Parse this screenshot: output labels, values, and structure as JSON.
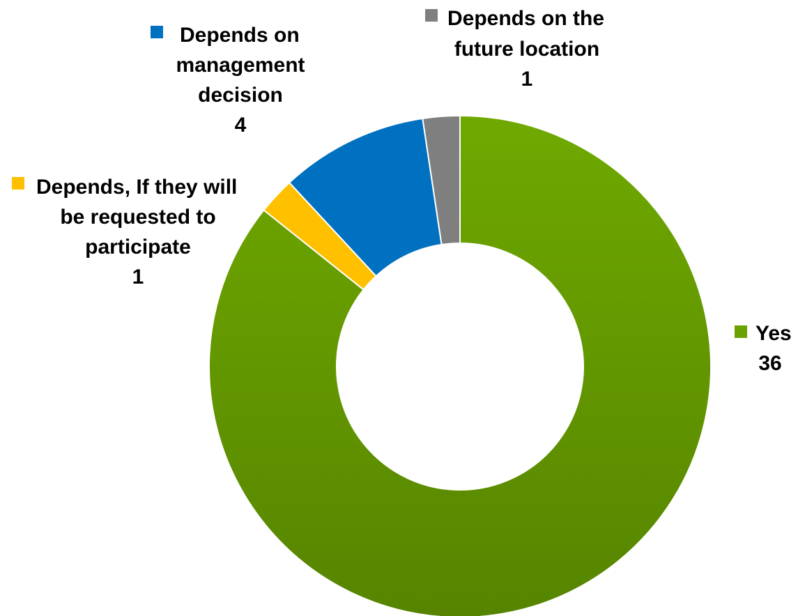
{
  "chart_data": {
    "type": "pie",
    "variant": "donut",
    "title": "",
    "slices": [
      {
        "label_lines": [
          "Yes"
        ],
        "value": 36,
        "value_text": "36",
        "color": "#6aa300"
      },
      {
        "label_lines": [
          "Depends, If they will",
          "be requested to",
          "participate"
        ],
        "value": 1,
        "value_text": "1",
        "color": "#ffc000"
      },
      {
        "label_lines": [
          "Depends on",
          "management",
          "decision"
        ],
        "value": 4,
        "value_text": "4",
        "color": "#0070c0"
      },
      {
        "label_lines": [
          "Depends on the",
          "future location"
        ],
        "value": 1,
        "value_text": "1",
        "color": "#7f7f7f"
      }
    ],
    "legend": "inline labels beside slices"
  }
}
